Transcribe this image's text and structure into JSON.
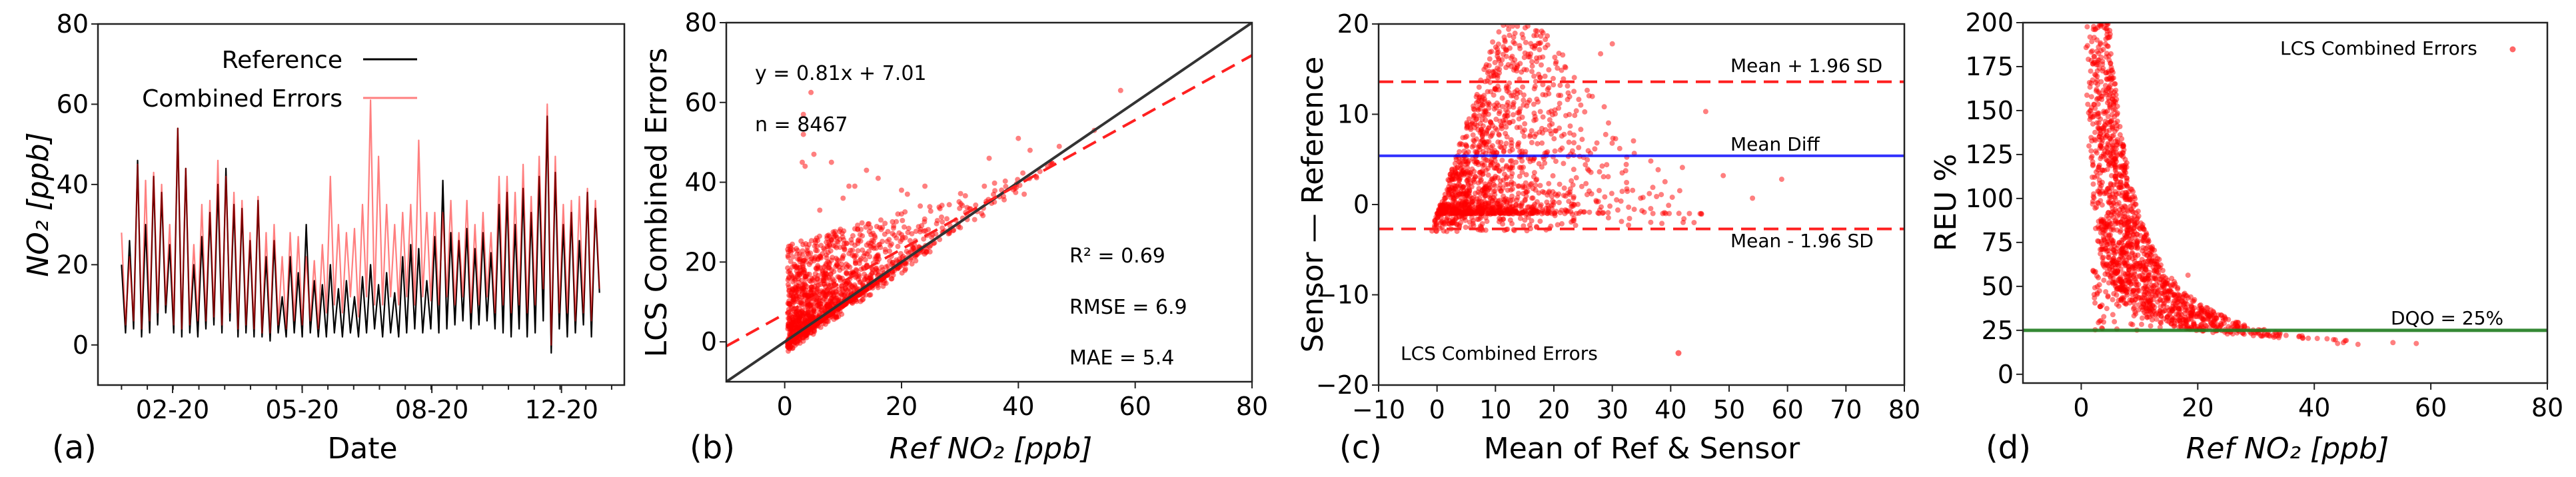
{
  "figure_labels": [
    "(a)",
    "(b)",
    "(c)",
    "(d)"
  ],
  "chart_data": [
    {
      "panel": "a",
      "type": "line",
      "xlabel": "Date",
      "ylabel": "NO₂ [ppb]",
      "x_unit": "days (Jan–Dec 2020)",
      "xlim": [
        -18,
        384
      ],
      "ylim": [
        -10,
        80
      ],
      "yticks": [
        0,
        20,
        40,
        60,
        80
      ],
      "xticks": [
        {
          "value": 39,
          "label": "02-20"
        },
        {
          "value": 138,
          "label": "05-20"
        },
        {
          "value": 237,
          "label": "08-20"
        },
        {
          "value": 336,
          "label": "12-20"
        }
      ],
      "legend": {
        "position": "top-center"
      },
      "series": [
        {
          "name": "Reference",
          "color": "#000000",
          "values": [
            20,
            3,
            26,
            4,
            46,
            2,
            30,
            3,
            42,
            5,
            38,
            8,
            25,
            3,
            54,
            2,
            44,
            3,
            20,
            2,
            27,
            4,
            33,
            5,
            40,
            3,
            44,
            6,
            35,
            2,
            34,
            3,
            26,
            2,
            36,
            2,
            22,
            1,
            26,
            3,
            12,
            2,
            22,
            3,
            18,
            2,
            30,
            3,
            16,
            2,
            15,
            2,
            20,
            3,
            14,
            2,
            16,
            3,
            12,
            2,
            17,
            3,
            20,
            4,
            15,
            2,
            18,
            3,
            13,
            2,
            22,
            3,
            25,
            4,
            24,
            3,
            16,
            4,
            27,
            3,
            41,
            4,
            28,
            5,
            26,
            6,
            29,
            4,
            24,
            5,
            28,
            6,
            23,
            4,
            35,
            3,
            38,
            2,
            30,
            4,
            39,
            2,
            33,
            3,
            42,
            6,
            57,
            -2,
            43,
            4,
            30,
            2,
            33,
            3,
            26,
            5,
            38,
            2,
            34,
            13
          ]
        },
        {
          "name": "Combined Errors",
          "color": "#ff0000",
          "values": [
            28,
            5,
            22,
            6,
            45,
            4,
            41,
            6,
            43,
            8,
            40,
            10,
            30,
            5,
            54,
            4,
            44,
            5,
            25,
            6,
            35,
            6,
            36,
            7,
            46,
            5,
            42,
            8,
            38,
            4,
            36,
            5,
            28,
            4,
            37,
            3,
            28,
            3,
            30,
            5,
            22,
            4,
            28,
            6,
            27,
            5,
            22,
            6,
            21,
            4,
            25,
            8,
            42,
            10,
            30,
            8,
            28,
            12,
            29,
            7,
            35,
            12,
            61,
            10,
            47,
            10,
            35,
            12,
            30,
            10,
            33,
            12,
            35,
            10,
            51,
            12,
            33,
            11,
            33,
            10,
            33,
            12,
            36,
            10,
            28,
            12,
            36,
            8,
            30,
            10,
            33,
            12,
            28,
            8,
            42,
            10,
            42,
            8,
            38,
            10,
            45,
            8,
            37,
            10,
            47,
            14,
            60,
            0,
            47,
            8,
            35,
            8,
            36,
            6,
            37,
            8,
            39,
            6,
            36,
            14
          ]
        }
      ]
    },
    {
      "panel": "b",
      "type": "scatter",
      "xlabel": "Ref NO₂ [ppb]",
      "ylabel": "LCS Combined Errors",
      "xlim": [
        -10,
        80
      ],
      "ylim": [
        -10,
        80
      ],
      "xticks": [
        0,
        20,
        40,
        60,
        80
      ],
      "yticks": [
        0,
        20,
        40,
        60,
        80
      ],
      "equation": "y = 0.81x + 7.01",
      "n_label": "n = 8467",
      "n": 8467,
      "fit": {
        "slope": 0.81,
        "intercept": 7.01,
        "color": "#ff2020",
        "style": "dashed"
      },
      "identity_line": {
        "slope": 1,
        "intercept": 0,
        "color": "#333333"
      },
      "stats": [
        "R² = 0.69",
        "RMSE = 6.9",
        "MAE = 5.4"
      ],
      "point_color": "#ff0000",
      "outlier_points": [
        [
          4.5,
          62.5
        ],
        [
          3.2,
          57
        ],
        [
          3.2,
          52
        ],
        [
          5,
          47
        ],
        [
          3,
          45
        ],
        [
          3.5,
          44
        ],
        [
          8,
          45
        ],
        [
          14,
          43
        ],
        [
          16,
          41
        ],
        [
          12,
          39
        ],
        [
          11,
          39
        ],
        [
          20,
          38
        ],
        [
          21,
          37
        ],
        [
          24,
          39
        ],
        [
          10,
          36
        ],
        [
          6,
          33
        ],
        [
          35,
          46
        ],
        [
          40,
          51
        ],
        [
          42,
          48
        ],
        [
          47,
          49
        ],
        [
          53,
          53
        ],
        [
          57.5,
          63
        ],
        [
          45,
          44
        ],
        [
          41,
          37
        ]
      ]
    },
    {
      "panel": "c",
      "type": "scatter",
      "xlabel": "Mean of Ref & Sensor",
      "ylabel": "Sensor — Reference",
      "xlim": [
        -10,
        80
      ],
      "ylim": [
        -20,
        20
      ],
      "xticks": [
        -10,
        0,
        10,
        20,
        30,
        40,
        50,
        60,
        70,
        80
      ],
      "yticks": [
        -20,
        -10,
        0,
        10,
        20
      ],
      "xtick_labels": [
        "−10",
        "0",
        "10",
        "20",
        "30",
        "40",
        "50",
        "60",
        "70",
        "80"
      ],
      "ytick_labels": [
        "−20",
        "−10",
        "0",
        "10",
        "20"
      ],
      "reference_lines": [
        {
          "label": "Mean + 1.96 SD",
          "y": 13.6,
          "color": "#ff2020",
          "style": "dashed"
        },
        {
          "label": "Mean Diff",
          "y": 5.4,
          "color": "#0000ff",
          "style": "solid"
        },
        {
          "label": "Mean - 1.96 SD",
          "y": -2.7,
          "color": "#ff2020",
          "style": "dashed"
        }
      ],
      "legend": {
        "label": "LCS Combined Errors",
        "position": "lower-left"
      },
      "point_color": "#ff0000",
      "outlier_points": [
        [
          46,
          10.3
        ],
        [
          59,
          2.8
        ],
        [
          54,
          0.7
        ],
        [
          49,
          3.2
        ],
        [
          44,
          -2
        ],
        [
          28,
          16.7
        ],
        [
          30,
          17.8
        ],
        [
          42,
          4.1
        ]
      ]
    },
    {
      "panel": "d",
      "type": "scatter",
      "xlabel": "Ref NO₂ [ppb]",
      "ylabel": "REU %",
      "xlim": [
        -10,
        80
      ],
      "ylim": [
        -5,
        200
      ],
      "xticks": [
        0,
        20,
        40,
        60,
        80
      ],
      "yticks": [
        0,
        25,
        50,
        75,
        100,
        125,
        150,
        175,
        200
      ],
      "dqo": {
        "label": "DQO = 25%",
        "y": 25,
        "color": "#1e7b1e"
      },
      "legend": {
        "label": "LCS Combined Errors",
        "position": "upper-right"
      },
      "point_color": "#ff0000",
      "outlier_points": [
        [
          47.5,
          17
        ],
        [
          53.5,
          18
        ],
        [
          57.5,
          17.5
        ],
        [
          45,
          18
        ],
        [
          44,
          17.5
        ]
      ]
    }
  ]
}
